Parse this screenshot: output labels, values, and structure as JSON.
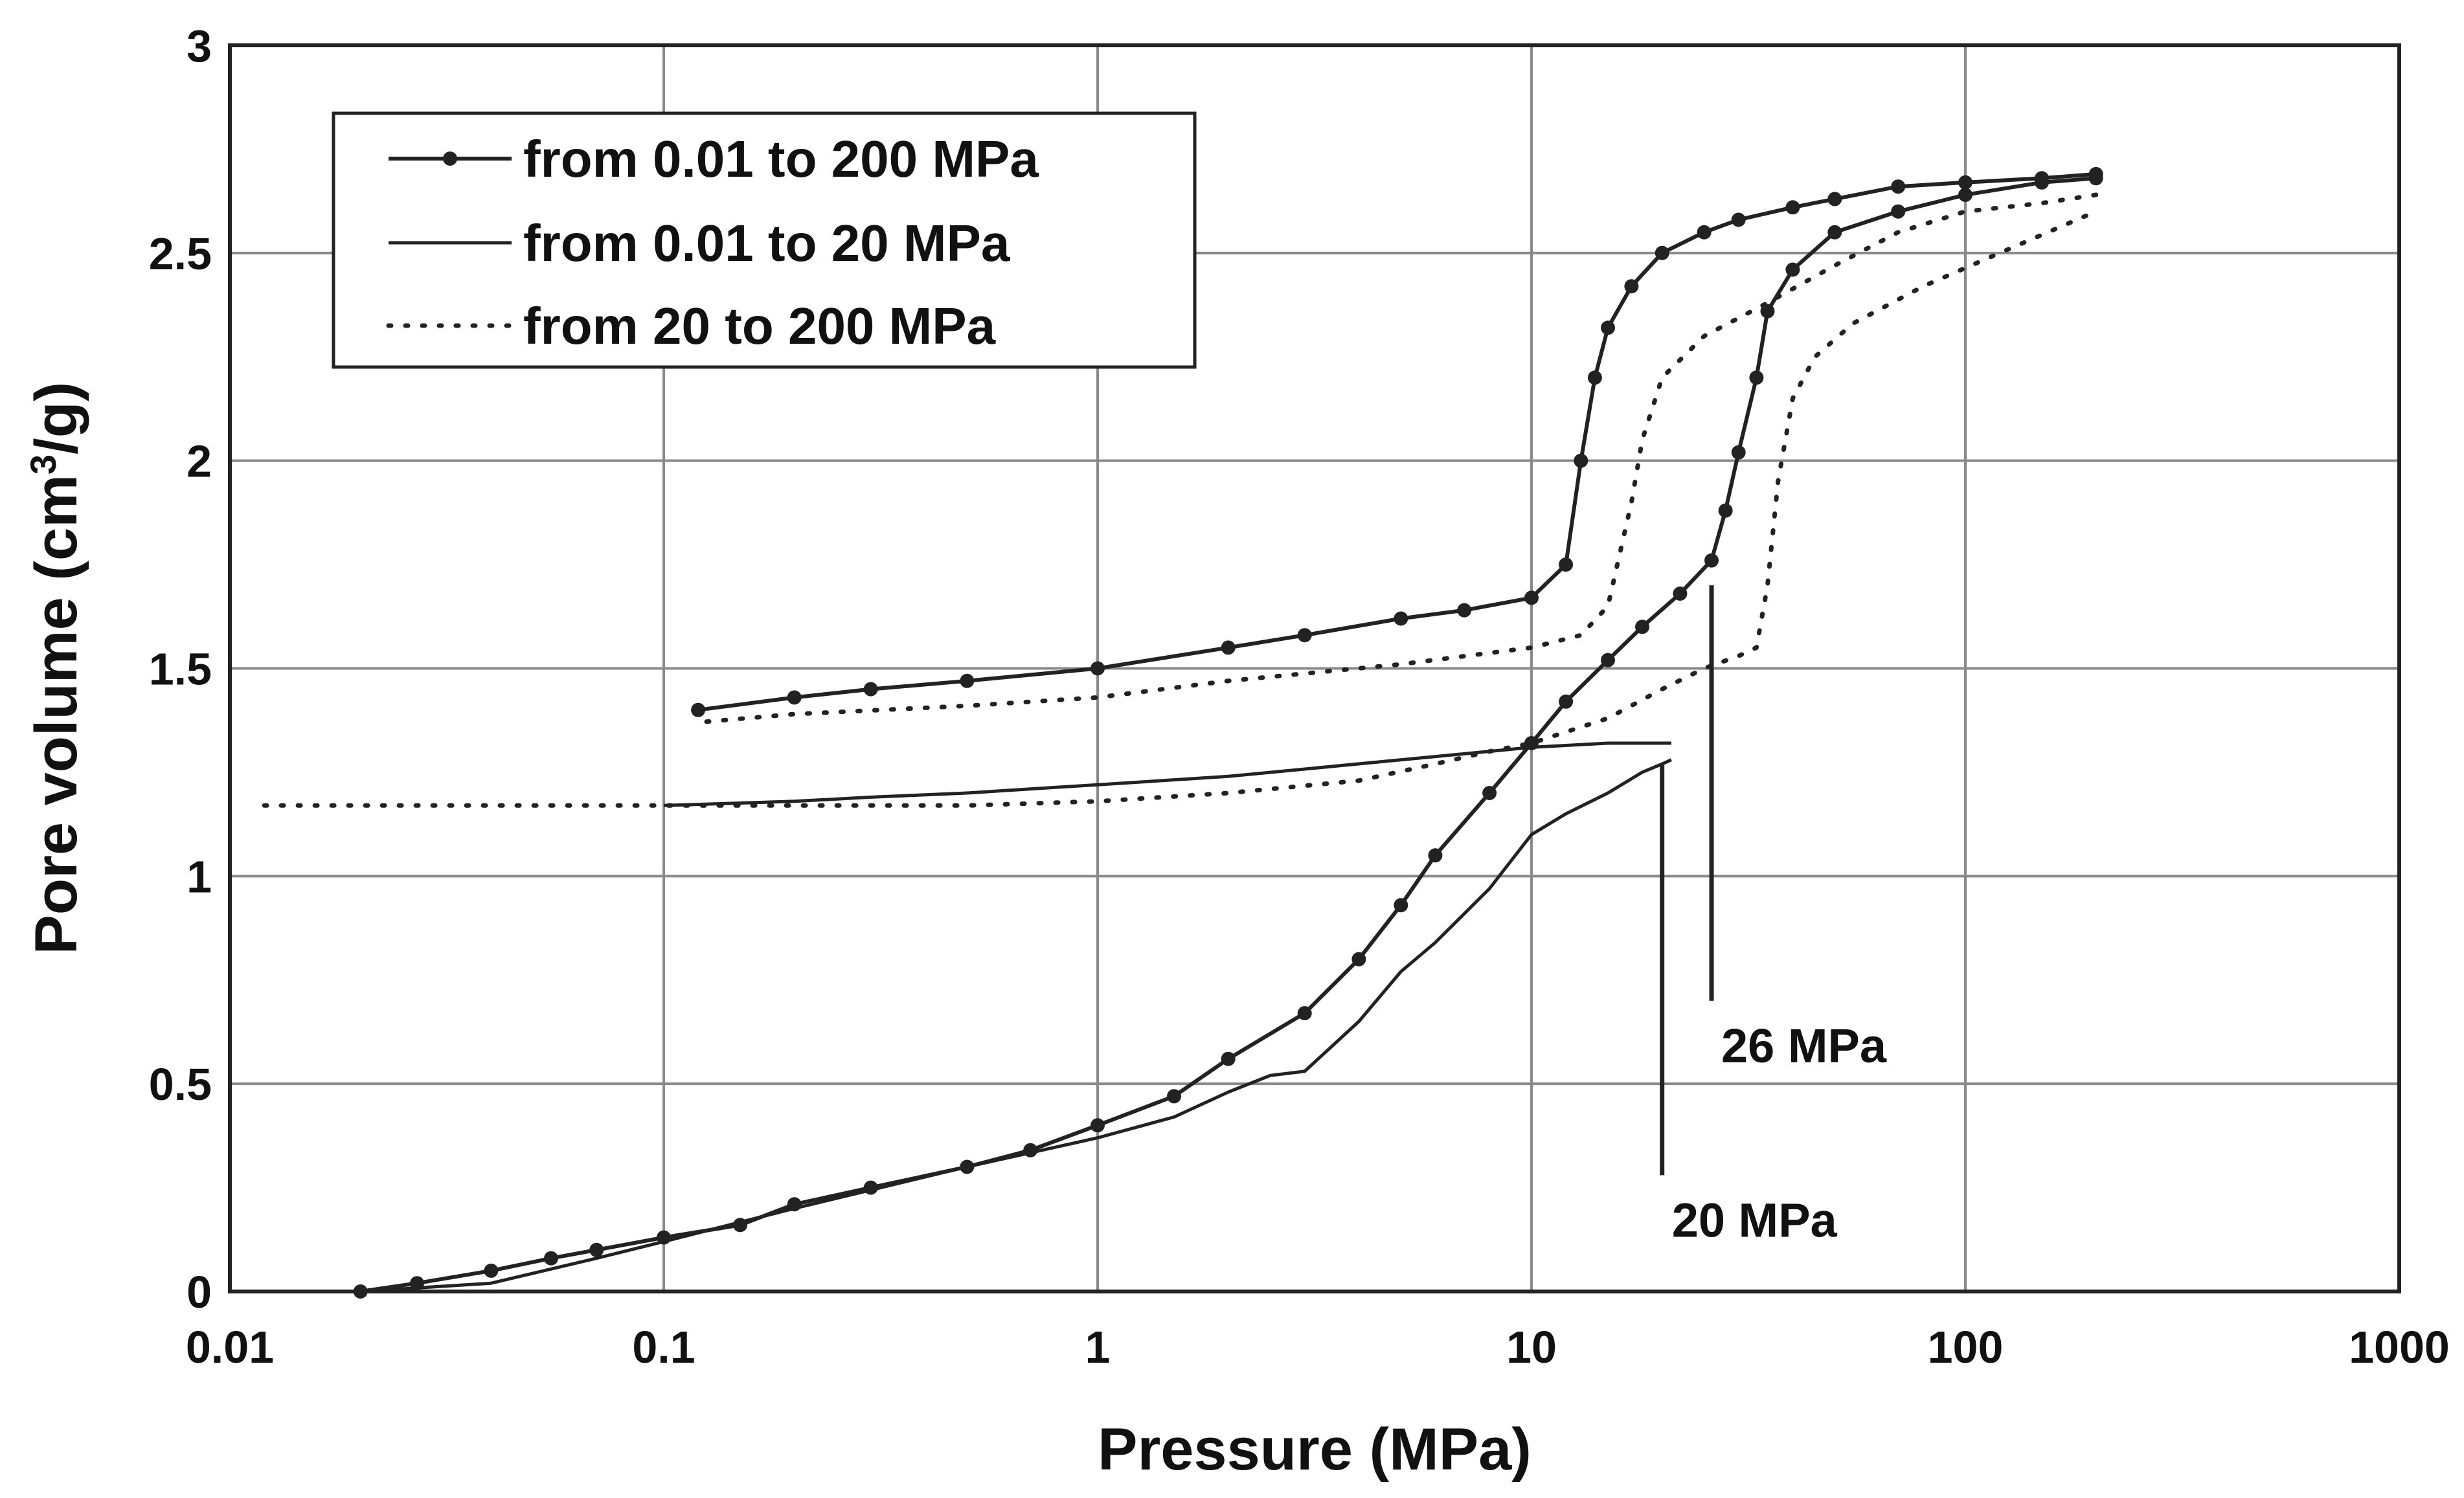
{
  "chart_data": {
    "type": "line",
    "title": "",
    "xlabel": "Pressure (MPa)",
    "ylabel_main": "Pore volume (cm",
    "ylabel_sup": "3",
    "ylabel_tail": "/g)",
    "xscale": "log",
    "xlim": [
      0.01,
      1000
    ],
    "ylim": [
      0,
      3
    ],
    "grid": true,
    "legend_position": "top-left",
    "x_tick_labels": [
      "0.01",
      "0.1",
      "1",
      "10",
      "100",
      "1000"
    ],
    "y_tick_labels": [
      "0",
      "0.5",
      "1",
      "1.5",
      "2",
      "2.5",
      "3"
    ],
    "series": [
      {
        "name": "from 0.01 to 200 MPa",
        "style": "solid-markers",
        "intrusion": [
          [
            0.02,
            0
          ],
          [
            0.027,
            0.02
          ],
          [
            0.04,
            0.05
          ],
          [
            0.055,
            0.08
          ],
          [
            0.07,
            0.1
          ],
          [
            0.1,
            0.13
          ],
          [
            0.15,
            0.16
          ],
          [
            0.2,
            0.21
          ],
          [
            0.3,
            0.25
          ],
          [
            0.5,
            0.3
          ],
          [
            0.7,
            0.34
          ],
          [
            1,
            0.4
          ],
          [
            1.5,
            0.47
          ],
          [
            2,
            0.56
          ],
          [
            3,
            0.67
          ],
          [
            4,
            0.8
          ],
          [
            5,
            0.93
          ],
          [
            6,
            1.05
          ],
          [
            8,
            1.2
          ],
          [
            10,
            1.32
          ],
          [
            12,
            1.42
          ],
          [
            15,
            1.52
          ],
          [
            18,
            1.6
          ],
          [
            22,
            1.68
          ],
          [
            26,
            1.76
          ],
          [
            28,
            1.88
          ],
          [
            30,
            2.02
          ],
          [
            33,
            2.2
          ],
          [
            35,
            2.36
          ],
          [
            40,
            2.46
          ],
          [
            50,
            2.55
          ],
          [
            70,
            2.6
          ],
          [
            100,
            2.64
          ],
          [
            150,
            2.67
          ],
          [
            200,
            2.68
          ]
        ],
        "extrusion": [
          [
            200,
            2.69
          ],
          [
            150,
            2.68
          ],
          [
            100,
            2.67
          ],
          [
            70,
            2.66
          ],
          [
            50,
            2.63
          ],
          [
            40,
            2.61
          ],
          [
            30,
            2.58
          ],
          [
            25,
            2.55
          ],
          [
            20,
            2.5
          ],
          [
            17,
            2.42
          ],
          [
            15,
            2.32
          ],
          [
            14,
            2.2
          ],
          [
            13,
            2.0
          ],
          [
            12,
            1.75
          ],
          [
            10,
            1.67
          ],
          [
            7,
            1.64
          ],
          [
            5,
            1.62
          ],
          [
            3,
            1.58
          ],
          [
            2,
            1.55
          ],
          [
            1,
            1.5
          ],
          [
            0.5,
            1.47
          ],
          [
            0.3,
            1.45
          ],
          [
            0.2,
            1.43
          ],
          [
            0.12,
            1.4
          ]
        ]
      },
      {
        "name": "from 0.01 to 20 MPa",
        "style": "solid",
        "intrusion": [
          [
            0.02,
            0
          ],
          [
            0.04,
            0.02
          ],
          [
            0.07,
            0.08
          ],
          [
            0.1,
            0.12
          ],
          [
            0.2,
            0.2
          ],
          [
            0.5,
            0.3
          ],
          [
            1,
            0.37
          ],
          [
            1.5,
            0.42
          ],
          [
            2,
            0.48
          ],
          [
            2.5,
            0.52
          ],
          [
            3,
            0.53
          ],
          [
            4,
            0.65
          ],
          [
            5,
            0.77
          ],
          [
            6,
            0.84
          ],
          [
            8,
            0.97
          ],
          [
            10,
            1.1
          ],
          [
            12,
            1.15
          ],
          [
            15,
            1.2
          ],
          [
            18,
            1.25
          ],
          [
            20,
            1.27
          ],
          [
            21,
            1.28
          ]
        ],
        "extrusion": [
          [
            21,
            1.32
          ],
          [
            15,
            1.32
          ],
          [
            10,
            1.31
          ],
          [
            5,
            1.28
          ],
          [
            2,
            1.24
          ],
          [
            1,
            1.22
          ],
          [
            0.5,
            1.2
          ],
          [
            0.3,
            1.19
          ],
          [
            0.2,
            1.18
          ],
          [
            0.1,
            1.17
          ]
        ]
      },
      {
        "name": "from 20 to 200 MPa",
        "style": "dotted",
        "part1": [
          [
            0.012,
            1.17
          ],
          [
            0.05,
            1.17
          ],
          [
            0.1,
            1.17
          ],
          [
            0.3,
            1.17
          ],
          [
            0.5,
            1.17
          ],
          [
            1,
            1.18
          ],
          [
            2,
            1.2
          ],
          [
            4,
            1.23
          ],
          [
            6,
            1.27
          ],
          [
            8,
            1.3
          ],
          [
            10,
            1.32
          ],
          [
            15,
            1.38
          ],
          [
            20,
            1.45
          ],
          [
            25,
            1.5
          ],
          [
            30,
            1.53
          ],
          [
            33,
            1.55
          ],
          [
            35,
            1.7
          ],
          [
            37,
            1.95
          ],
          [
            40,
            2.15
          ],
          [
            45,
            2.25
          ],
          [
            55,
            2.33
          ],
          [
            80,
            2.42
          ],
          [
            120,
            2.5
          ],
          [
            200,
            2.6
          ]
        ],
        "part2": [
          [
            200,
            2.64
          ],
          [
            150,
            2.62
          ],
          [
            100,
            2.6
          ],
          [
            70,
            2.55
          ],
          [
            50,
            2.47
          ],
          [
            35,
            2.38
          ],
          [
            25,
            2.3
          ],
          [
            20,
            2.2
          ],
          [
            18,
            2.05
          ],
          [
            17,
            1.9
          ],
          [
            15,
            1.65
          ],
          [
            13,
            1.58
          ],
          [
            10,
            1.55
          ],
          [
            5,
            1.51
          ],
          [
            2,
            1.47
          ],
          [
            1,
            1.43
          ],
          [
            0.5,
            1.41
          ],
          [
            0.2,
            1.39
          ],
          [
            0.12,
            1.37
          ]
        ]
      }
    ],
    "annotations": [
      {
        "text": "26 MPa",
        "x": 26,
        "y_top": 1.7,
        "y_bottom": 0.7
      },
      {
        "text": "20 MPa",
        "x": 20,
        "y_top": 1.27,
        "y_bottom": 0.28
      }
    ]
  }
}
